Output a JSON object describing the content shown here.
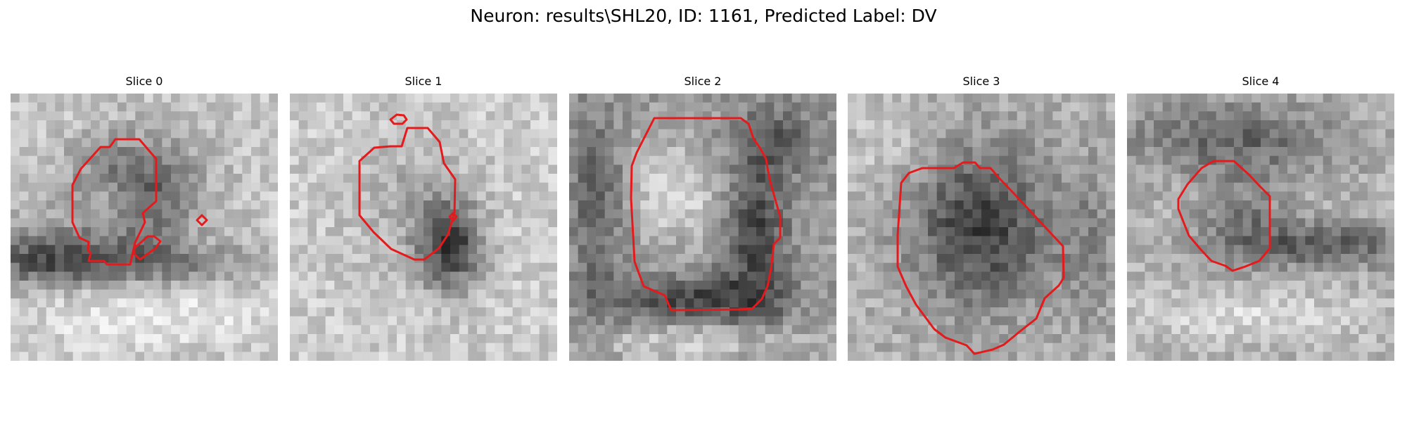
{
  "figure": {
    "suptitle": "Neuron: results\\SHL20, ID: 1161, Predicted Label: DV",
    "contour_color": "#e41a1c"
  },
  "panels": [
    {
      "title": "Slice 0",
      "colormap": "gray"
    },
    {
      "title": "Slice 1",
      "colormap": "gray"
    },
    {
      "title": "Slice 2",
      "colormap": "gray"
    },
    {
      "title": "Slice 3",
      "colormap": "gray"
    },
    {
      "title": "Slice 4",
      "colormap": "gray"
    }
  ]
}
